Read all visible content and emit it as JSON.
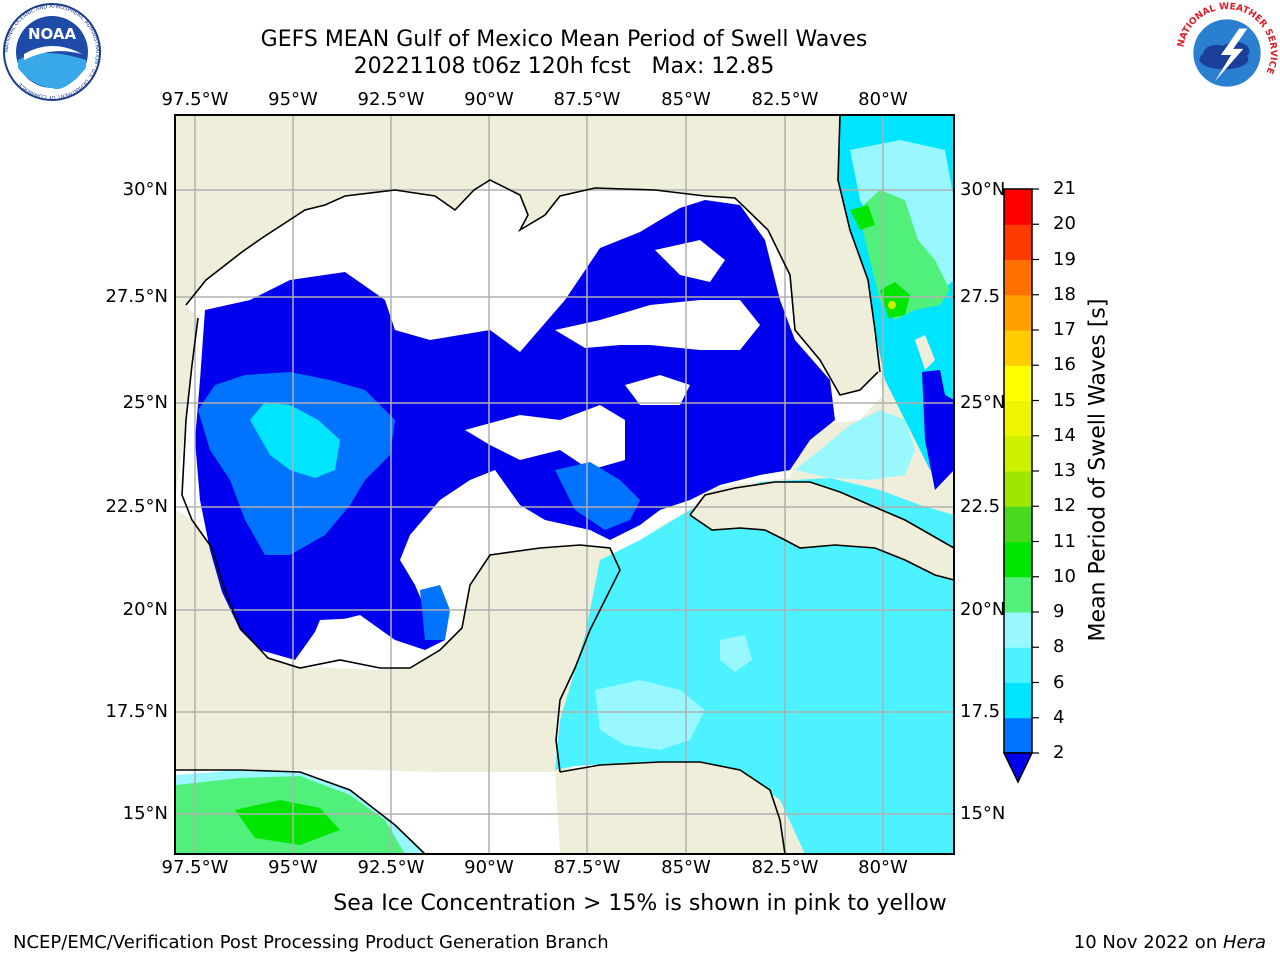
{
  "title_line1": "GEFS MEAN Gulf of Mexico Mean Period of Swell Waves",
  "title_line2": "20221108 t06z 120h fcst   Max: 12.85",
  "x_ticks": [
    "97.5°W",
    "95°W",
    "92.5°W",
    "90°W",
    "87.5°W",
    "85°W",
    "82.5°W",
    "80°W"
  ],
  "y_ticks_left": [
    "30°N",
    "27.5°N",
    "25°N",
    "22.5°N",
    "20°N",
    "17.5°N",
    "15°N"
  ],
  "y_ticks_right": [
    "30°N",
    "27.5",
    "25°N",
    "22.5",
    "20°N",
    "17.5",
    "15°N"
  ],
  "colorbar": {
    "label": "Mean Period of Swell Waves [s]",
    "ticks": [
      "2",
      "4",
      "6",
      "8",
      "9",
      "10",
      "11",
      "12",
      "13",
      "14",
      "15",
      "16",
      "17",
      "18",
      "19",
      "20",
      "21"
    ],
    "colors": [
      "#0000ee",
      "#0073ff",
      "#00e5ff",
      "#4cf2ff",
      "#99f8ff",
      "#50f07a",
      "#00e600",
      "#4ad91c",
      "#a0e600",
      "#ccf000",
      "#eef500",
      "#ffff00",
      "#ffcc00",
      "#ffa000",
      "#ff7000",
      "#ff3a00",
      "#ff0000"
    ]
  },
  "note": "Sea Ice Concentration > 15% is shown in pink to yellow",
  "credit": "NCEP/EMC/Verification Post Processing Product Generation Branch",
  "date_text": "10 Nov 2022 on ",
  "machine": "Hera",
  "logos": {
    "noaa_text": "NOAA",
    "noaa_ring": "NATIONAL OCEANIC AND ATMOSPHERIC ADMINISTRATION · U.S. DEPARTMENT OF COMMERCE",
    "nws_ring": "NATIONAL WEATHER SERVICE"
  },
  "colors": {
    "land": "#efeedb",
    "water_mask": "#ffffff",
    "grid": "#b0b0b0",
    "deep_blue": "#0000ee",
    "mid_blue": "#0073ff",
    "cyan": "#00e5ff",
    "light_cyan": "#4cf2ff",
    "pale_cyan": "#99f8ff",
    "green": "#50f07a",
    "bright_green": "#00e600"
  }
}
